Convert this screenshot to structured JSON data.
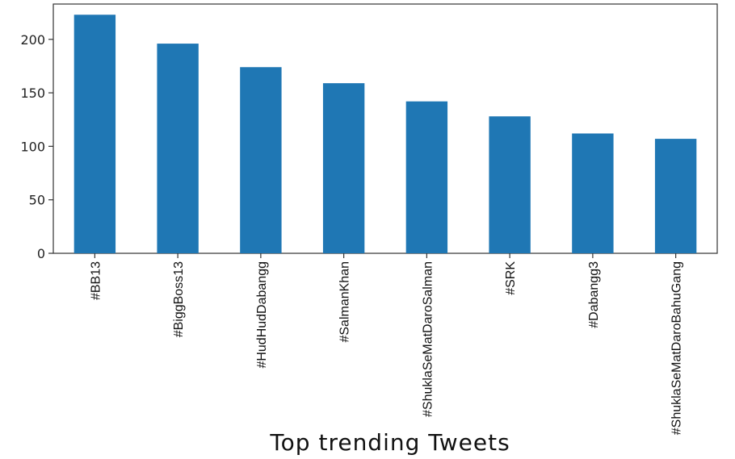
{
  "chart_data": {
    "type": "bar",
    "categories": [
      "#BB13",
      "#BiggBoss13",
      "#HudHudDabangg",
      "#SalmanKhan",
      "#ShuklaSeMatDaroSalman",
      "#SRK",
      "#Dabangg3",
      "#ShuklaSeMatDaroBahuGang"
    ],
    "values": [
      223,
      196,
      174,
      159,
      142,
      128,
      112,
      107
    ],
    "title": "",
    "xlabel": "Top trending Tweets",
    "ylabel": "",
    "ylim": [
      0,
      233
    ],
    "yticks": [
      0,
      50,
      100,
      150,
      200
    ],
    "grid": false,
    "bar_color": "#1f77b4"
  }
}
